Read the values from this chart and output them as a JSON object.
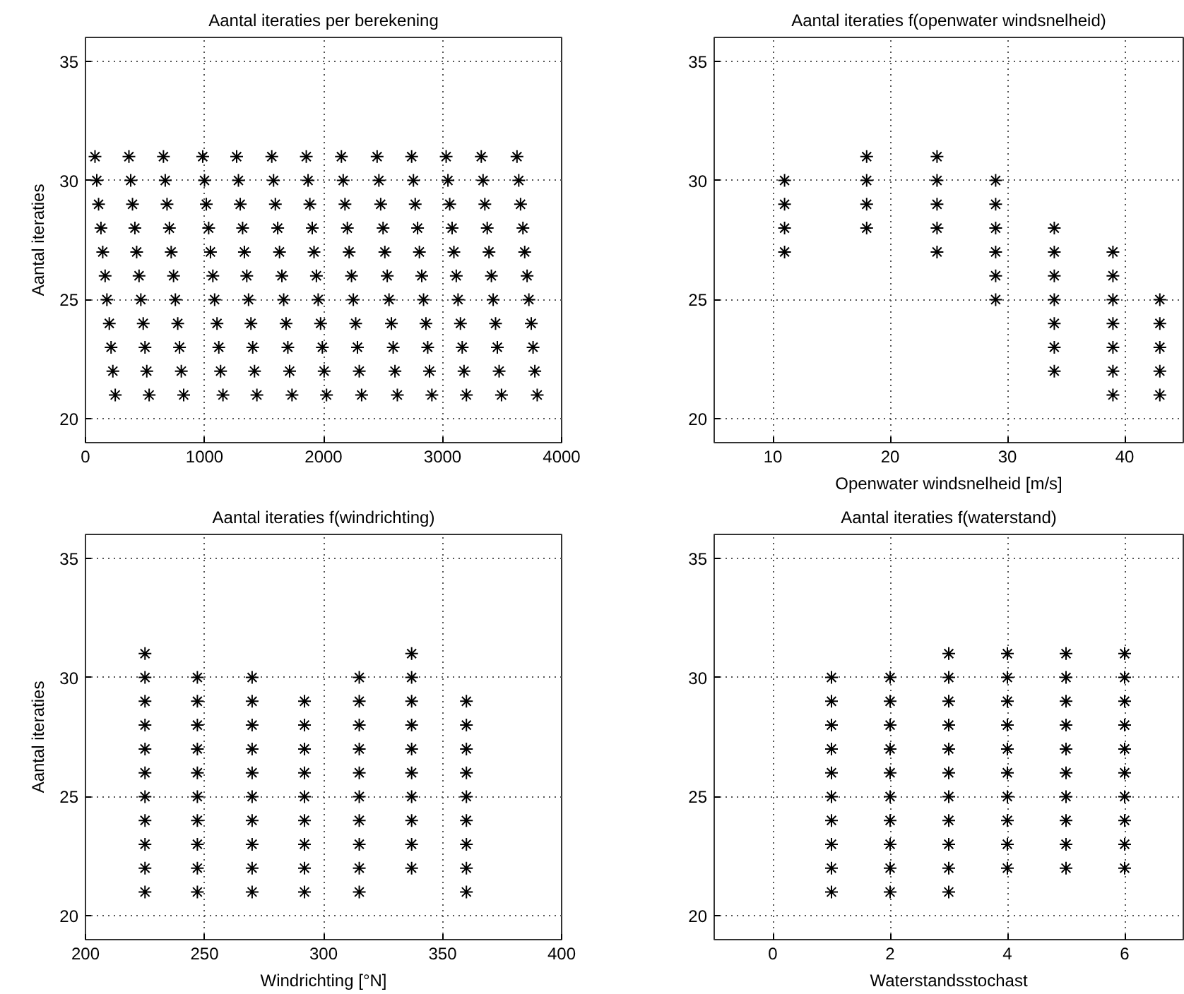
{
  "chart_data": [
    {
      "type": "scatter",
      "title": "Aantal iteraties per berekening",
      "ylabel": "Aantal iteraties",
      "marker": "cross",
      "grid": true,
      "color": "#000000",
      "x": [
        80,
        365,
        655,
        985,
        1270,
        1565,
        1855,
        2150,
        2450,
        2740,
        3030,
        3325,
        3625,
        95,
        380,
        670,
        1000,
        1285,
        1580,
        1870,
        2165,
        2465,
        2755,
        3045,
        3340,
        3640,
        110,
        395,
        685,
        1015,
        1300,
        1595,
        1885,
        2180,
        2480,
        2770,
        3060,
        3355,
        3655,
        130,
        415,
        705,
        1035,
        1320,
        1615,
        1905,
        2200,
        2500,
        2790,
        3080,
        3375,
        3675,
        145,
        430,
        720,
        1050,
        1335,
        1630,
        1920,
        2215,
        2515,
        2805,
        3095,
        3390,
        3690,
        165,
        450,
        740,
        1070,
        1355,
        1650,
        1940,
        2235,
        2535,
        2825,
        3115,
        3410,
        3710,
        180,
        465,
        755,
        1085,
        1370,
        1665,
        1955,
        2250,
        2550,
        2840,
        3130,
        3425,
        3725,
        200,
        485,
        775,
        1105,
        1390,
        1685,
        1975,
        2270,
        2570,
        2860,
        3150,
        3445,
        3745,
        215,
        500,
        790,
        1120,
        1405,
        1700,
        1990,
        2285,
        2585,
        2875,
        3165,
        3460,
        3760,
        230,
        515,
        805,
        1135,
        1420,
        1715,
        2005,
        2300,
        2600,
        2890,
        3180,
        3475,
        3775,
        250,
        535,
        825,
        1155,
        1440,
        1735,
        2025,
        2320,
        2620,
        2910,
        3200,
        3495,
        3795
      ],
      "values": [
        31,
        31,
        31,
        31,
        31,
        31,
        31,
        31,
        31,
        31,
        31,
        31,
        31,
        30,
        30,
        30,
        30,
        30,
        30,
        30,
        30,
        30,
        30,
        30,
        30,
        30,
        29,
        29,
        29,
        29,
        29,
        29,
        29,
        29,
        29,
        29,
        29,
        29,
        29,
        28,
        28,
        28,
        28,
        28,
        28,
        28,
        28,
        28,
        28,
        28,
        28,
        28,
        27,
        27,
        27,
        27,
        27,
        27,
        27,
        27,
        27,
        27,
        27,
        27,
        27,
        26,
        26,
        26,
        26,
        26,
        26,
        26,
        26,
        26,
        26,
        26,
        26,
        26,
        25,
        25,
        25,
        25,
        25,
        25,
        25,
        25,
        25,
        25,
        25,
        25,
        25,
        24,
        24,
        24,
        24,
        24,
        24,
        24,
        24,
        24,
        24,
        24,
        24,
        24,
        23,
        23,
        23,
        23,
        23,
        23,
        23,
        23,
        23,
        23,
        23,
        23,
        23,
        22,
        22,
        22,
        22,
        22,
        22,
        22,
        22,
        22,
        22,
        22,
        22,
        22,
        21,
        21,
        21,
        21,
        21,
        21,
        21,
        21,
        21,
        21,
        21,
        21,
        21
      ],
      "xlim": [
        0,
        4000
      ],
      "ylim": [
        19,
        36
      ],
      "xticks": [
        0,
        1000,
        2000,
        3000,
        4000
      ],
      "yticks": [
        20,
        25,
        30,
        35
      ]
    },
    {
      "type": "scatter",
      "title": "Aantal iteraties f(openwater windsnelheid)",
      "xlabel": "Openwater windsnelheid [m/s]",
      "marker": "cross",
      "grid": true,
      "color": "#000000",
      "x": [
        11,
        11,
        11,
        11,
        18,
        18,
        18,
        18,
        24,
        24,
        24,
        24,
        24,
        29,
        29,
        29,
        29,
        29,
        29,
        34,
        34,
        34,
        34,
        34,
        34,
        34,
        39,
        39,
        39,
        39,
        39,
        39,
        39,
        43,
        43,
        43,
        43,
        43
      ],
      "values": [
        27,
        28,
        29,
        30,
        28,
        29,
        30,
        31,
        27,
        28,
        29,
        30,
        31,
        25,
        26,
        27,
        28,
        29,
        30,
        22,
        23,
        24,
        25,
        26,
        27,
        28,
        21,
        22,
        23,
        24,
        25,
        26,
        27,
        21,
        22,
        23,
        24,
        25
      ],
      "xlim": [
        5,
        45
      ],
      "ylim": [
        19,
        36
      ],
      "xticks": [
        10,
        20,
        30,
        40
      ],
      "yticks": [
        20,
        25,
        30,
        35
      ]
    },
    {
      "type": "scatter",
      "title": "Aantal iteraties f(windrichting)",
      "xlabel": "Windrichting [°N]",
      "ylabel": "Aantal iteraties",
      "marker": "cross",
      "grid": true,
      "color": "#000000",
      "x": [
        225,
        225,
        225,
        225,
        225,
        225,
        225,
        225,
        225,
        225,
        225,
        247,
        247,
        247,
        247,
        247,
        247,
        247,
        247,
        247,
        247,
        270,
        270,
        270,
        270,
        270,
        270,
        270,
        270,
        270,
        270,
        292,
        292,
        292,
        292,
        292,
        292,
        292,
        292,
        292,
        315,
        315,
        315,
        315,
        315,
        315,
        315,
        315,
        315,
        315,
        337,
        337,
        337,
        337,
        337,
        337,
        337,
        337,
        337,
        337,
        360,
        360,
        360,
        360,
        360,
        360,
        360,
        360,
        360
      ],
      "values": [
        21,
        22,
        23,
        24,
        25,
        26,
        27,
        28,
        29,
        30,
        31,
        21,
        22,
        23,
        24,
        25,
        26,
        27,
        28,
        29,
        30,
        21,
        22,
        23,
        24,
        25,
        26,
        27,
        28,
        29,
        30,
        21,
        22,
        23,
        24,
        25,
        26,
        27,
        28,
        29,
        21,
        22,
        23,
        24,
        25,
        26,
        27,
        28,
        29,
        30,
        22,
        23,
        24,
        25,
        26,
        27,
        28,
        29,
        30,
        31,
        21,
        22,
        23,
        24,
        25,
        26,
        27,
        28,
        29
      ],
      "xlim": [
        200,
        400
      ],
      "ylim": [
        19,
        36
      ],
      "xticks": [
        200,
        250,
        300,
        350,
        400
      ],
      "yticks": [
        20,
        25,
        30,
        35
      ]
    },
    {
      "type": "scatter",
      "title": "Aantal iteraties f(waterstand)",
      "xlabel": "Waterstandsstochast",
      "marker": "cross",
      "grid": true,
      "color": "#000000",
      "x": [
        1,
        1,
        1,
        1,
        1,
        1,
        1,
        1,
        1,
        1,
        2,
        2,
        2,
        2,
        2,
        2,
        2,
        2,
        2,
        2,
        3,
        3,
        3,
        3,
        3,
        3,
        3,
        3,
        3,
        3,
        3,
        4,
        4,
        4,
        4,
        4,
        4,
        4,
        4,
        4,
        4,
        5,
        5,
        5,
        5,
        5,
        5,
        5,
        5,
        5,
        5,
        6,
        6,
        6,
        6,
        6,
        6,
        6,
        6,
        6,
        6
      ],
      "values": [
        21,
        22,
        23,
        24,
        25,
        26,
        27,
        28,
        29,
        30,
        21,
        22,
        23,
        24,
        25,
        26,
        27,
        28,
        29,
        30,
        21,
        22,
        23,
        24,
        25,
        26,
        27,
        28,
        29,
        30,
        31,
        22,
        23,
        24,
        25,
        26,
        27,
        28,
        29,
        30,
        31,
        22,
        23,
        24,
        25,
        26,
        27,
        28,
        29,
        30,
        31,
        22,
        23,
        24,
        25,
        26,
        27,
        28,
        29,
        30,
        31
      ],
      "xlim": [
        -1,
        7
      ],
      "ylim": [
        19,
        36
      ],
      "xticks": [
        0,
        2,
        4,
        6
      ],
      "yticks": [
        20,
        25,
        30,
        35
      ]
    }
  ]
}
